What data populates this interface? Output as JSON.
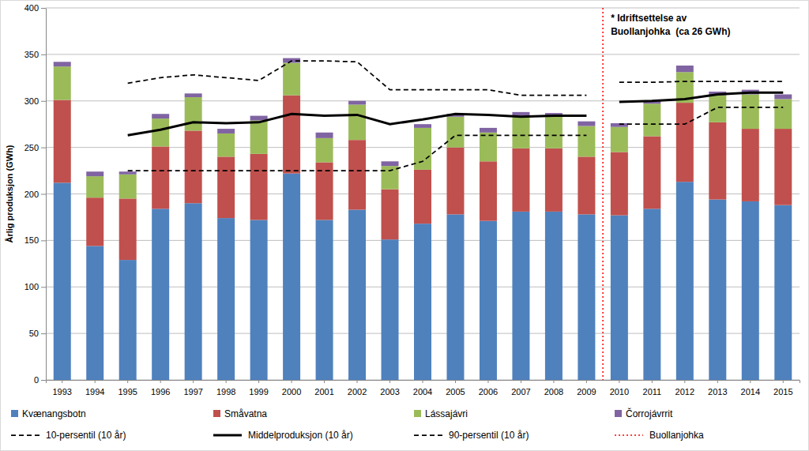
{
  "chart_data": {
    "type": "bar",
    "stacked": true,
    "grid": true,
    "legend": "bottom",
    "y_label": "Årlig produksjon (GWh)",
    "categories": [
      "1993",
      "1994",
      "1995",
      "1996",
      "1997",
      "1998",
      "1999",
      "2000",
      "2001",
      "2002",
      "2003",
      "2004",
      "2005",
      "2006",
      "2007",
      "2008",
      "2009",
      "2010",
      "2011",
      "2012",
      "2013",
      "2014",
      "2015"
    ],
    "ylim": [
      0,
      400
    ],
    "yticks": [
      0,
      50,
      100,
      150,
      200,
      250,
      300,
      350,
      400
    ],
    "series": [
      {
        "name": "Kvænangsbotn",
        "color": "#4F81BD",
        "values": [
          212,
          144,
          129,
          184,
          190,
          174,
          172,
          222,
          172,
          183,
          151,
          168,
          178,
          171,
          181,
          181,
          178,
          177,
          184,
          213,
          194,
          192,
          188
        ]
      },
      {
        "name": "Småvatna",
        "color": "#C0504D",
        "values": [
          89,
          52,
          66,
          67,
          78,
          66,
          71,
          84,
          62,
          75,
          54,
          58,
          72,
          64,
          68,
          68,
          62,
          68,
          78,
          85,
          83,
          78,
          82
        ]
      },
      {
        "name": "Lássajávri",
        "color": "#9BBB59",
        "values": [
          36,
          23,
          26,
          30,
          36,
          25,
          36,
          35,
          26,
          38,
          25,
          45,
          33,
          31,
          35,
          34,
          33,
          27,
          35,
          33,
          29,
          37,
          32
        ]
      },
      {
        "name": "Čorrojávrrit",
        "color": "#8064A2",
        "values": [
          5,
          5,
          3,
          5,
          4,
          5,
          5,
          5,
          6,
          4,
          5,
          4,
          3,
          5,
          4,
          4,
          5,
          4,
          3,
          7,
          4,
          5,
          5
        ]
      },
      {
        "name": "10-persentil (10 år)",
        "type": "line",
        "color": "#000000",
        "line_style": "dashed",
        "values": [
          null,
          null,
          225,
          225,
          225,
          225,
          225,
          225,
          225,
          225,
          225,
          235,
          263,
          263,
          263,
          263,
          263,
          275,
          275,
          275,
          293,
          293,
          293
        ]
      },
      {
        "name": "Middelproduksjon (10 år)",
        "type": "line",
        "color": "#000000",
        "line_style": "solid",
        "values": [
          null,
          null,
          263,
          269,
          277,
          276,
          277,
          286,
          284,
          285,
          275,
          280,
          286,
          285,
          283,
          284,
          284,
          299,
          300,
          302,
          307,
          309,
          309
        ]
      },
      {
        "name": "90-persentil (10 år)",
        "type": "line",
        "color": "#000000",
        "line_style": "dashed",
        "values": [
          null,
          null,
          319,
          325,
          328,
          325,
          322,
          343,
          343,
          342,
          312,
          312,
          312,
          312,
          306,
          306,
          306,
          320,
          320,
          321,
          321,
          321,
          321
        ]
      },
      {
        "name": "Buollanjohka",
        "type": "vline",
        "color": "#FF0000",
        "line_style": "dotted",
        "x": "2010"
      }
    ],
    "annotations": [
      {
        "text": "* Idriftsettelse av"
      },
      {
        "text": "Buollanjohka  (ca 26 GWh)"
      }
    ]
  }
}
